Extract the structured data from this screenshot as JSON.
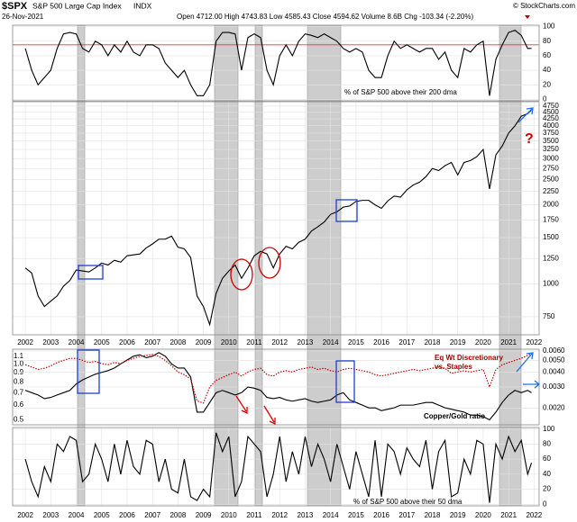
{
  "header": {
    "symbol": "$SPX",
    "name": "S&P 500 Large Cap Index",
    "exchange": "INDX",
    "date": "26-Nov-2021",
    "quote": "Open 4712.00  High 4743.83  Low 4585.43  Close 4594.62  Volume 8.6B  Chg -103.34 (-2.20%)",
    "credit": "© StockCharts.com"
  },
  "chart_data": [
    {
      "type": "line",
      "annotations": [
        "% of S&P 500 above their 200 dma"
      ],
      "color": "#000000",
      "reference_line": 75,
      "reference_color": "#d04040",
      "x": [
        2002,
        2002.25,
        2002.5,
        2002.75,
        2003,
        2003.25,
        2003.5,
        2003.75,
        2004,
        2004.25,
        2004.5,
        2004.75,
        2005,
        2005.25,
        2005.5,
        2005.75,
        2006,
        2006.25,
        2006.5,
        2006.75,
        2007,
        2007.25,
        2007.5,
        2007.75,
        2008,
        2008.25,
        2008.5,
        2008.75,
        2009,
        2009.25,
        2009.5,
        2009.75,
        2010,
        2010.25,
        2010.5,
        2010.75,
        2011,
        2011.25,
        2011.5,
        2011.75,
        2012,
        2012.25,
        2012.5,
        2012.75,
        2013,
        2013.25,
        2013.5,
        2013.75,
        2014,
        2014.25,
        2014.5,
        2014.75,
        2015,
        2015.25,
        2015.5,
        2015.75,
        2016,
        2016.25,
        2016.5,
        2016.75,
        2017,
        2017.25,
        2017.5,
        2017.75,
        2018,
        2018.25,
        2018.5,
        2018.75,
        2019,
        2019.25,
        2019.5,
        2019.75,
        2020,
        2020.25,
        2020.5,
        2020.75,
        2021,
        2021.25,
        2021.5,
        2021.75,
        2021.9
      ],
      "values": [
        70,
        40,
        20,
        30,
        40,
        70,
        90,
        92,
        90,
        70,
        65,
        80,
        75,
        60,
        75,
        65,
        80,
        65,
        60,
        75,
        75,
        70,
        50,
        40,
        30,
        40,
        20,
        5,
        5,
        20,
        80,
        92,
        92,
        90,
        40,
        85,
        90,
        85,
        40,
        20,
        60,
        75,
        60,
        80,
        90,
        88,
        85,
        90,
        85,
        80,
        70,
        65,
        70,
        65,
        40,
        30,
        30,
        60,
        80,
        70,
        75,
        70,
        65,
        70,
        70,
        55,
        65,
        40,
        30,
        70,
        65,
        75,
        80,
        5,
        55,
        75,
        92,
        95,
        88,
        70,
        70
      ],
      "xlim": [
        2001.5,
        2022.2
      ],
      "ylim": [
        -2,
        102
      ],
      "yticks": [
        0,
        20,
        40,
        60,
        80,
        100
      ],
      "grid": true
    },
    {
      "type": "line",
      "log_scale": true,
      "color": "#000000",
      "annotations": [
        "?"
      ],
      "x": [
        2002,
        2002.25,
        2002.5,
        2002.75,
        2003,
        2003.25,
        2003.5,
        2003.75,
        2004,
        2004.25,
        2004.5,
        2004.75,
        2005,
        2005.25,
        2005.5,
        2005.75,
        2006,
        2006.25,
        2006.5,
        2006.75,
        2007,
        2007.25,
        2007.5,
        2007.75,
        2008,
        2008.25,
        2008.5,
        2008.75,
        2009,
        2009.25,
        2009.5,
        2009.75,
        2010,
        2010.25,
        2010.5,
        2010.75,
        2011,
        2011.25,
        2011.5,
        2011.75,
        2012,
        2012.25,
        2012.5,
        2012.75,
        2013,
        2013.25,
        2013.5,
        2013.75,
        2014,
        2014.25,
        2014.5,
        2014.75,
        2015,
        2015.25,
        2015.5,
        2015.75,
        2016,
        2016.25,
        2016.5,
        2016.75,
        2017,
        2017.25,
        2017.5,
        2017.75,
        2018,
        2018.25,
        2018.5,
        2018.75,
        2019,
        2019.25,
        2019.5,
        2019.75,
        2020,
        2020.25,
        2020.5,
        2020.75,
        2021,
        2021.25,
        2021.5,
        2021.75,
        2021.9
      ],
      "values": [
        1150,
        1100,
        900,
        820,
        860,
        900,
        980,
        1030,
        1130,
        1120,
        1110,
        1150,
        1200,
        1180,
        1230,
        1210,
        1280,
        1290,
        1300,
        1370,
        1420,
        1480,
        1480,
        1520,
        1380,
        1360,
        1260,
        900,
        820,
        700,
        920,
        1050,
        1120,
        1180,
        1050,
        1150,
        1280,
        1330,
        1300,
        1150,
        1300,
        1390,
        1360,
        1440,
        1480,
        1590,
        1650,
        1720,
        1840,
        1880,
        1960,
        1980,
        2060,
        2080,
        2080,
        2000,
        1940,
        2070,
        2160,
        2140,
        2280,
        2380,
        2440,
        2560,
        2750,
        2700,
        2820,
        2900,
        2600,
        2900,
        2950,
        3050,
        3250,
        2300,
        3100,
        3350,
        3750,
        4000,
        4350,
        4450,
        4594.62
      ],
      "xlim": [
        2001.5,
        2022.2
      ],
      "xticks": [
        2002,
        2003,
        2004,
        2005,
        2006,
        2007,
        2008,
        2009,
        2010,
        2011,
        2012,
        2013,
        2014,
        2015,
        2016,
        2017,
        2018,
        2019,
        2020,
        2021,
        2022
      ],
      "ylim": [
        640,
        4940
      ],
      "yticks": [
        750,
        1000,
        1250,
        1500,
        1750,
        2000,
        2250,
        2500,
        2750,
        3000,
        3250,
        3500,
        3750,
        4000,
        4250,
        4500,
        4750
      ],
      "grid": true
    },
    {
      "type": "line",
      "log_scale": true,
      "annotations": [
        "Eq Wt Discretionary",
        "vs. Staples",
        "Copper/Gold ratio"
      ],
      "x": [
        2002,
        2002.25,
        2002.5,
        2002.75,
        2003,
        2003.25,
        2003.5,
        2003.75,
        2004,
        2004.25,
        2004.5,
        2004.75,
        2005,
        2005.25,
        2005.5,
        2005.75,
        2006,
        2006.25,
        2006.5,
        2006.75,
        2007,
        2007.25,
        2007.5,
        2007.75,
        2008,
        2008.25,
        2008.5,
        2008.75,
        2009,
        2009.25,
        2009.5,
        2009.75,
        2010,
        2010.25,
        2010.5,
        2010.75,
        2011,
        2011.25,
        2011.5,
        2011.75,
        2012,
        2012.25,
        2012.5,
        2012.75,
        2013,
        2013.25,
        2013.5,
        2013.75,
        2014,
        2014.25,
        2014.5,
        2014.75,
        2015,
        2015.25,
        2015.5,
        2015.75,
        2016,
        2016.25,
        2016.5,
        2016.75,
        2017,
        2017.25,
        2017.5,
        2017.75,
        2018,
        2018.25,
        2018.5,
        2018.75,
        2019,
        2019.25,
        2019.5,
        2019.75,
        2020,
        2020.25,
        2020.5,
        2020.75,
        2021,
        2021.25,
        2021.5,
        2021.75,
        2021.9
      ],
      "series": [
        {
          "color": "#000000",
          "line_style": "solid",
          "values": [
            0.72,
            0.7,
            0.68,
            0.65,
            0.66,
            0.68,
            0.7,
            0.72,
            0.78,
            0.82,
            0.85,
            0.88,
            0.9,
            0.92,
            0.95,
            1.0,
            1.05,
            1.1,
            1.12,
            1.08,
            1.1,
            1.15,
            1.1,
            1.0,
            0.95,
            0.95,
            0.85,
            0.55,
            0.55,
            0.62,
            0.7,
            0.72,
            0.7,
            0.68,
            0.7,
            0.75,
            0.74,
            0.72,
            0.66,
            0.65,
            0.66,
            0.64,
            0.63,
            0.64,
            0.65,
            0.63,
            0.62,
            0.63,
            0.64,
            0.68,
            0.7,
            0.64,
            0.62,
            0.6,
            0.58,
            0.58,
            0.56,
            0.57,
            0.58,
            0.6,
            0.6,
            0.6,
            0.61,
            0.62,
            0.62,
            0.6,
            0.58,
            0.57,
            0.56,
            0.55,
            0.53,
            0.53,
            0.52,
            0.5,
            0.55,
            0.62,
            0.68,
            0.72,
            0.7,
            0.72,
            0.7
          ]
        },
        {
          "color": "#c00000",
          "line_style": "dotted",
          "axis": "y2",
          "values": [
            0.0046,
            0.0044,
            0.0042,
            0.0043,
            0.0045,
            0.0048,
            0.005,
            0.0052,
            0.0052,
            0.005,
            0.0048,
            0.0049,
            0.0047,
            0.0046,
            0.0048,
            0.0047,
            0.005,
            0.0052,
            0.0054,
            0.0055,
            0.0056,
            0.0054,
            0.005,
            0.0045,
            0.004,
            0.0038,
            0.0035,
            0.0023,
            0.0022,
            0.003,
            0.0034,
            0.0036,
            0.0038,
            0.004,
            0.0037,
            0.004,
            0.0042,
            0.0043,
            0.0038,
            0.0037,
            0.004,
            0.0041,
            0.004,
            0.0042,
            0.0043,
            0.0044,
            0.0042,
            0.0043,
            0.0041,
            0.004,
            0.0042,
            0.0043,
            0.0042,
            0.0041,
            0.004,
            0.0038,
            0.0037,
            0.0038,
            0.0039,
            0.004,
            0.0041,
            0.0042,
            0.0041,
            0.0042,
            0.0043,
            0.0044,
            0.0043,
            0.0039,
            0.004,
            0.0041,
            0.004,
            0.0041,
            0.0042,
            0.003,
            0.0042,
            0.0046,
            0.0048,
            0.005,
            0.0052,
            0.0055,
            0.0057
          ]
        }
      ],
      "xlim": [
        2001.5,
        2022.2
      ],
      "ylim": [
        0.47,
        1.2
      ],
      "yticks": [
        0.5,
        0.6,
        0.7,
        0.8,
        0.9,
        {
          "value": 1,
          "label": "1.0"
        },
        1.1
      ],
      "y2lim": [
        0.00145,
        0.0062
      ],
      "y2ticks": [
        {
          "value": 0.002,
          "label": "0.0020"
        },
        {
          "value": 0.003,
          "label": "0.0030"
        },
        {
          "value": 0.004,
          "label": "0.0040"
        },
        {
          "value": 0.005,
          "label": "0.0050"
        },
        {
          "value": 0.006,
          "label": "0.0060"
        }
      ]
    },
    {
      "type": "line",
      "annotations": [
        "% of S&P 500 above their 50 dma"
      ],
      "color": "#000000",
      "x": [
        2002,
        2002.25,
        2002.5,
        2002.75,
        2003,
        2003.25,
        2003.5,
        2003.75,
        2004,
        2004.25,
        2004.5,
        2004.75,
        2005,
        2005.25,
        2005.5,
        2005.75,
        2006,
        2006.25,
        2006.5,
        2006.75,
        2007,
        2007.25,
        2007.5,
        2007.75,
        2008,
        2008.25,
        2008.5,
        2008.75,
        2009,
        2009.25,
        2009.5,
        2009.75,
        2010,
        2010.25,
        2010.5,
        2010.75,
        2011,
        2011.25,
        2011.5,
        2011.75,
        2012,
        2012.25,
        2012.5,
        2012.75,
        2013,
        2013.25,
        2013.5,
        2013.75,
        2014,
        2014.25,
        2014.5,
        2014.75,
        2015,
        2015.25,
        2015.5,
        2015.75,
        2016,
        2016.25,
        2016.5,
        2016.75,
        2017,
        2017.25,
        2017.5,
        2017.75,
        2018,
        2018.25,
        2018.5,
        2018.75,
        2019,
        2019.25,
        2019.5,
        2019.75,
        2020,
        2020.25,
        2020.5,
        2020.75,
        2021,
        2021.25,
        2021.5,
        2021.75,
        2021.9
      ],
      "values": [
        60,
        30,
        10,
        50,
        30,
        80,
        70,
        90,
        85,
        30,
        40,
        80,
        60,
        30,
        80,
        40,
        85,
        50,
        40,
        85,
        80,
        30,
        60,
        20,
        15,
        60,
        10,
        5,
        20,
        10,
        95,
        70,
        90,
        10,
        30,
        90,
        80,
        70,
        10,
        40,
        90,
        30,
        70,
        40,
        90,
        50,
        80,
        60,
        30,
        80,
        50,
        20,
        70,
        40,
        10,
        85,
        10,
        80,
        70,
        40,
        75,
        60,
        50,
        85,
        20,
        70,
        85,
        10,
        15,
        60,
        40,
        85,
        80,
        2,
        80,
        60,
        90,
        70,
        85,
        40,
        55
      ],
      "xlim": [
        2001.5,
        2022.2
      ],
      "xticks": [
        2002,
        2003,
        2004,
        2005,
        2006,
        2007,
        2008,
        2009,
        2010,
        2011,
        2012,
        2013,
        2014,
        2015,
        2016,
        2017,
        2018,
        2019,
        2020,
        2021,
        2022
      ],
      "ylim": [
        -2,
        102
      ],
      "yticks": [
        0,
        20,
        40,
        60,
        80,
        100
      ],
      "grid": true
    }
  ]
}
